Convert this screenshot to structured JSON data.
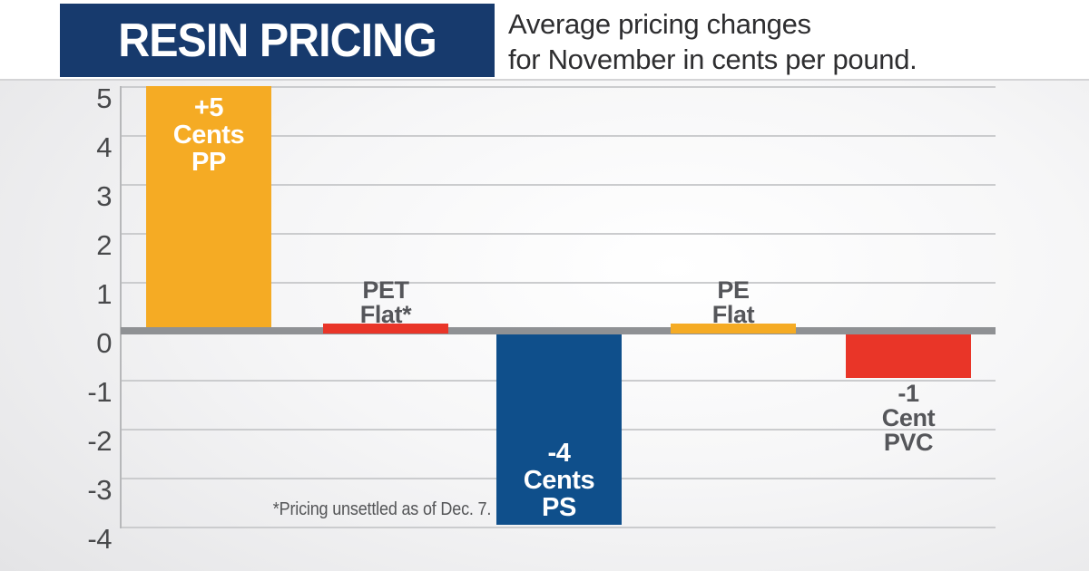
{
  "header": {
    "title": "RESIN PRICING",
    "subtitle_line1": "Average pricing changes",
    "subtitle_line2": "for November in cents per pound."
  },
  "chart_data": {
    "type": "bar",
    "title": "RESIN PRICING",
    "subtitle": "Average pricing changes for November in cents per pound.",
    "xlabel": "",
    "ylabel": "cents per pound",
    "categories": [
      "PP",
      "PET",
      "PS",
      "PE",
      "PVC"
    ],
    "values": [
      5,
      0,
      -4,
      0,
      -1
    ],
    "ylim": [
      -4,
      5
    ],
    "yticks": [
      "5",
      "4",
      "3",
      "2",
      "1",
      "0",
      "-1",
      "-2",
      "-3",
      "-4"
    ],
    "grid": true,
    "legend": "none",
    "footnote": "*Pricing unsettled as of Dec. 7.",
    "bars": [
      {
        "category": "PP",
        "value": 5,
        "display": "+5 Cents PP",
        "label_lines": [
          "+5",
          "Cents",
          "PP"
        ],
        "style": "column",
        "color": "#F5AB24",
        "label_color": "#FFFFFF",
        "label_placement": "inside-top"
      },
      {
        "category": "PET",
        "value": 0,
        "display": "PET Flat*",
        "label_lines": [
          "PET",
          "Flat*"
        ],
        "style": "flat-marker",
        "color": "#E93528",
        "label_color": "#55565A",
        "label_placement": "above-zero-line"
      },
      {
        "category": "PS",
        "value": -4,
        "display": "-4 Cents PS",
        "label_lines": [
          "-4",
          "Cents",
          "PS"
        ],
        "style": "column",
        "color": "#0F4F8B",
        "label_color": "#FFFFFF",
        "label_placement": "inside-bottom"
      },
      {
        "category": "PE",
        "value": 0,
        "display": "PE Flat",
        "label_lines": [
          "PE",
          "Flat"
        ],
        "style": "flat-marker",
        "color": "#F5AB24",
        "label_color": "#55565A",
        "label_placement": "above-zero-line"
      },
      {
        "category": "PVC",
        "value": -1,
        "display": "-1 Cent PVC",
        "label_lines": [
          "-1",
          "Cent",
          "PVC"
        ],
        "style": "column",
        "color": "#E93528",
        "label_color": "#55565A",
        "label_placement": "below-bar"
      }
    ]
  },
  "colors": {
    "header_bg": "#173A6D",
    "header_text": "#FFFFFF",
    "subtitle_text": "#2E2E30",
    "axis_label": "#48494B",
    "gridline": "#CBCCCE",
    "zero_line": "#8F9194",
    "plot_border": "#B7B8BA",
    "footnote_text": "#545557",
    "background_edge": "#DFDFE1"
  }
}
